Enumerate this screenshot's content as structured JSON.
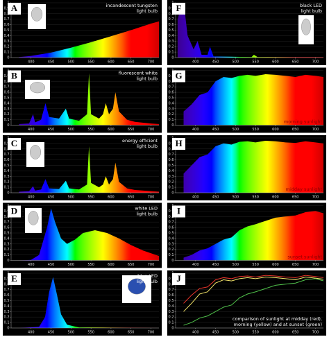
{
  "chart_data": [
    {
      "type": "area",
      "label": "A",
      "annotation": [
        "incandescent tungsten",
        "light bulb"
      ],
      "annotation_color": "#ffffff",
      "annotation_corner": "top",
      "x": [
        370,
        400,
        450,
        500,
        550,
        600,
        650,
        700,
        720
      ],
      "values": [
        0.01,
        0.03,
        0.09,
        0.18,
        0.28,
        0.39,
        0.5,
        0.62,
        0.66
      ],
      "xlim": [
        350,
        720
      ],
      "ylim": [
        0,
        1
      ],
      "xticks": [
        400,
        450,
        500,
        550,
        600,
        650,
        700
      ],
      "yticks": [
        0,
        0.1,
        0.2,
        0.3,
        0.4,
        0.5,
        0.6,
        0.7,
        0.8,
        0.9,
        1
      ],
      "grid": true
    },
    {
      "type": "area",
      "label": "B",
      "annotation": [
        "fluorescent white",
        "light bulb"
      ],
      "annotation_color": "#ffffff",
      "annotation_corner": "top",
      "x": [
        370,
        395,
        405,
        410,
        425,
        436,
        445,
        470,
        487,
        495,
        520,
        540,
        545,
        550,
        570,
        580,
        587,
        595,
        605,
        611,
        620,
        640,
        660,
        700,
        720
      ],
      "values": [
        0.02,
        0.03,
        0.2,
        0.05,
        0.1,
        0.4,
        0.15,
        0.12,
        0.3,
        0.12,
        0.08,
        0.2,
        0.95,
        0.2,
        0.12,
        0.2,
        0.4,
        0.2,
        0.3,
        0.6,
        0.25,
        0.1,
        0.06,
        0.03,
        0.02
      ],
      "xlim": [
        350,
        720
      ],
      "ylim": [
        0,
        1
      ],
      "xticks": [
        400,
        450,
        500,
        550,
        600,
        650,
        700
      ],
      "yticks": [
        0,
        0.1,
        0.2,
        0.3,
        0.4,
        0.5,
        0.6,
        0.7,
        0.8,
        0.9,
        1
      ],
      "grid": true
    },
    {
      "type": "area",
      "label": "C",
      "annotation": [
        "energy efficient",
        "light bulb"
      ],
      "annotation_color": "#ffffff",
      "annotation_corner": "top",
      "x": [
        370,
        395,
        405,
        410,
        425,
        436,
        445,
        470,
        487,
        495,
        520,
        540,
        545,
        550,
        570,
        580,
        587,
        595,
        605,
        611,
        620,
        640,
        660,
        700,
        720
      ],
      "values": [
        0.02,
        0.03,
        0.12,
        0.04,
        0.06,
        0.25,
        0.08,
        0.07,
        0.22,
        0.08,
        0.06,
        0.15,
        0.85,
        0.18,
        0.1,
        0.15,
        0.3,
        0.15,
        0.25,
        0.55,
        0.2,
        0.08,
        0.05,
        0.03,
        0.02
      ],
      "xlim": [
        350,
        720
      ],
      "ylim": [
        0,
        1
      ],
      "xticks": [
        400,
        450,
        500,
        550,
        600,
        650,
        700
      ],
      "yticks": [
        0,
        0.1,
        0.2,
        0.3,
        0.4,
        0.5,
        0.6,
        0.7,
        0.8,
        0.9,
        1
      ],
      "grid": true
    },
    {
      "type": "area",
      "label": "D",
      "annotation": [
        "white LED",
        "light bulb"
      ],
      "annotation_color": "#ffffff",
      "annotation_corner": "top",
      "x": [
        370,
        400,
        420,
        440,
        450,
        460,
        475,
        490,
        510,
        530,
        560,
        590,
        620,
        650,
        680,
        720
      ],
      "values": [
        0,
        0.01,
        0.1,
        0.6,
        0.95,
        0.7,
        0.4,
        0.3,
        0.38,
        0.5,
        0.55,
        0.5,
        0.4,
        0.28,
        0.18,
        0.08
      ],
      "xlim": [
        350,
        720
      ],
      "ylim": [
        0,
        1
      ],
      "xticks": [
        400,
        450,
        500,
        550,
        600,
        650,
        700
      ],
      "yticks": [
        0,
        0.1,
        0.2,
        0.3,
        0.4,
        0.5,
        0.6,
        0.7,
        0.8,
        0.9,
        1
      ],
      "grid": true
    },
    {
      "type": "area",
      "label": "E",
      "annotation": [
        "blue LED",
        "light bulb"
      ],
      "annotation_color": "#ffffff",
      "annotation_corner": "top",
      "x": [
        370,
        420,
        435,
        445,
        455,
        465,
        475,
        490,
        520,
        720
      ],
      "values": [
        0,
        0.02,
        0.2,
        0.65,
        0.93,
        0.6,
        0.25,
        0.06,
        0.01,
        0
      ],
      "xlim": [
        350,
        720
      ],
      "ylim": [
        0,
        1
      ],
      "xticks": [
        400,
        450,
        500,
        550,
        600,
        650,
        700
      ],
      "yticks": [
        0,
        0.1,
        0.2,
        0.3,
        0.4,
        0.5,
        0.6,
        0.7,
        0.8,
        0.9,
        1
      ],
      "grid": true
    },
    {
      "type": "area",
      "label": "F",
      "annotation": [
        "black LED",
        "light bulb"
      ],
      "annotation_color": "#ffffff",
      "annotation_corner": "top",
      "x": [
        355,
        365,
        372,
        380,
        395,
        405,
        415,
        430,
        436,
        445,
        540,
        546,
        555,
        720
      ],
      "values": [
        0.7,
        0.95,
        0.9,
        0.4,
        0.15,
        0.3,
        0.05,
        0.05,
        0.2,
        0.02,
        0.01,
        0.05,
        0.01,
        0.01
      ],
      "xlim": [
        350,
        720
      ],
      "ylim": [
        0,
        1
      ],
      "xticks": [
        400,
        450,
        500,
        550,
        600,
        650,
        700
      ],
      "yticks": [
        0,
        0.1,
        0.2,
        0.3,
        0.4,
        0.5,
        0.6,
        0.7,
        0.8,
        0.9,
        1
      ],
      "grid": true
    },
    {
      "type": "area",
      "label": "G",
      "annotation": [
        "morning sunlight"
      ],
      "annotation_color": "#8b0000",
      "annotation_corner": "bottom",
      "x": [
        370,
        390,
        410,
        430,
        450,
        470,
        490,
        510,
        530,
        550,
        575,
        600,
        625,
        650,
        675,
        700,
        720
      ],
      "values": [
        0.25,
        0.38,
        0.55,
        0.6,
        0.8,
        0.88,
        0.86,
        0.9,
        0.92,
        0.9,
        0.93,
        0.92,
        0.9,
        0.88,
        0.92,
        0.9,
        0.88
      ],
      "xlim": [
        350,
        720
      ],
      "ylim": [
        0,
        1
      ],
      "xticks": [
        400,
        450,
        500,
        550,
        600,
        650,
        700
      ],
      "yticks": [
        0,
        0.1,
        0.2,
        0.3,
        0.4,
        0.5,
        0.6,
        0.7,
        0.8,
        0.9,
        1
      ],
      "grid": true
    },
    {
      "type": "area",
      "label": "H",
      "annotation": [
        "midday sunlight"
      ],
      "annotation_color": "#8b0000",
      "annotation_corner": "bottom",
      "x": [
        370,
        390,
        410,
        430,
        450,
        470,
        490,
        510,
        530,
        550,
        575,
        600,
        625,
        650,
        675,
        700,
        720
      ],
      "values": [
        0.35,
        0.5,
        0.65,
        0.7,
        0.85,
        0.9,
        0.88,
        0.93,
        0.94,
        0.92,
        0.95,
        0.94,
        0.92,
        0.91,
        0.94,
        0.92,
        0.9
      ],
      "xlim": [
        350,
        720
      ],
      "ylim": [
        0,
        1
      ],
      "xticks": [
        400,
        450,
        500,
        550,
        600,
        650,
        700
      ],
      "yticks": [
        0,
        0.1,
        0.2,
        0.3,
        0.4,
        0.5,
        0.6,
        0.7,
        0.8,
        0.9,
        1
      ],
      "grid": true
    },
    {
      "type": "area",
      "label": "I",
      "annotation": [
        "sunset sunlight"
      ],
      "annotation_color": "#8b0000",
      "annotation_corner": "bottom",
      "x": [
        370,
        390,
        410,
        430,
        450,
        470,
        490,
        510,
        530,
        550,
        575,
        600,
        625,
        650,
        675,
        700,
        720
      ],
      "values": [
        0.05,
        0.1,
        0.18,
        0.22,
        0.3,
        0.38,
        0.42,
        0.55,
        0.62,
        0.66,
        0.72,
        0.78,
        0.8,
        0.82,
        0.88,
        0.9,
        0.86
      ],
      "xlim": [
        350,
        720
      ],
      "ylim": [
        0,
        1
      ],
      "xticks": [
        400,
        450,
        500,
        550,
        600,
        650,
        700
      ],
      "yticks": [
        0,
        0.1,
        0.2,
        0.3,
        0.4,
        0.5,
        0.6,
        0.7,
        0.8,
        0.9,
        1
      ],
      "grid": true
    },
    {
      "type": "line",
      "label": "J",
      "annotation": [
        "comparison of sunlight at midday (red),",
        "morning (yellow) and at sunset (green)"
      ],
      "annotation_color": "#ffffff",
      "annotation_corner": "bottom",
      "x": [
        370,
        390,
        410,
        430,
        450,
        470,
        490,
        510,
        530,
        550,
        575,
        600,
        625,
        650,
        675,
        700,
        720
      ],
      "series": [
        {
          "name": "midday",
          "color": "#e8342a",
          "values": [
            0.45,
            0.6,
            0.72,
            0.75,
            0.88,
            0.92,
            0.9,
            0.94,
            0.95,
            0.93,
            0.96,
            0.95,
            0.93,
            0.92,
            0.96,
            0.94,
            0.92
          ]
        },
        {
          "name": "morning",
          "color": "#f5e66a",
          "values": [
            0.3,
            0.45,
            0.62,
            0.66,
            0.82,
            0.88,
            0.86,
            0.9,
            0.92,
            0.9,
            0.93,
            0.92,
            0.9,
            0.88,
            0.93,
            0.91,
            0.89
          ]
        },
        {
          "name": "sunset",
          "color": "#4fc14a",
          "values": [
            0.05,
            0.1,
            0.18,
            0.22,
            0.3,
            0.38,
            0.42,
            0.55,
            0.62,
            0.66,
            0.72,
            0.78,
            0.8,
            0.82,
            0.88,
            0.9,
            0.86
          ]
        }
      ],
      "xlim": [
        350,
        720
      ],
      "ylim": [
        0,
        1
      ],
      "xticks": [
        400,
        450,
        500,
        550,
        600,
        650,
        700
      ],
      "yticks": [
        0,
        0.1,
        0.2,
        0.3,
        0.4,
        0.5,
        0.6,
        0.7,
        0.8,
        0.9,
        1
      ],
      "grid": true
    }
  ]
}
